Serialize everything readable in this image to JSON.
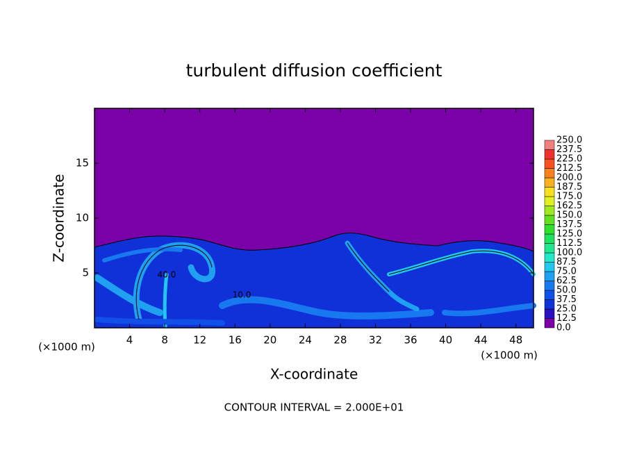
{
  "chart_data": {
    "type": "contour",
    "title": "turbulent diffusion coefficient",
    "x_label": "X-coordinate",
    "y_label": "Z-coordinate",
    "x_unit": "(×1000 m)",
    "y_unit": "(×1000 m)",
    "footer": "CONTOUR INTERVAL = 2.000E+01",
    "contour_labels": [
      "40.0",
      "10.0"
    ],
    "xlim": [
      0,
      50
    ],
    "xticks": [
      4,
      8,
      12,
      16,
      20,
      24,
      28,
      32,
      36,
      40,
      44,
      48
    ],
    "ylim": [
      0,
      20
    ],
    "yticks": [
      5,
      10,
      15
    ],
    "colorbar": {
      "levels": [
        {
          "value": 0,
          "label": "0.0"
        },
        12.5,
        {
          "value": 25,
          "label": "25.0"
        },
        37.5,
        {
          "value": 50,
          "label": "50.0"
        },
        62.5,
        {
          "value": 75,
          "label": "75.0"
        },
        87.5,
        {
          "value": 100,
          "label": "100.0"
        },
        112.5,
        {
          "value": 125,
          "label": "125.0"
        },
        137.5,
        {
          "value": 150,
          "label": "150.0"
        },
        162.5,
        {
          "value": 175,
          "label": "175.0"
        },
        187.5,
        {
          "value": 200,
          "label": "200.0"
        },
        212.5,
        {
          "value": 225,
          "label": "225.0"
        },
        237.5,
        {
          "value": 250,
          "label": "250.0"
        }
      ],
      "colors": [
        "#7a00a8",
        "#2a10c0",
        "#1030d8",
        "#1050e8",
        "#1878f0",
        "#20a0f0",
        "#20c8f0",
        "#20e8c8",
        "#20e890",
        "#20e060",
        "#30e030",
        "#60e020",
        "#a0e820",
        "#e0f020",
        "#f8e020",
        "#f8b020",
        "#f88020",
        "#f85020",
        "#f03030",
        "#f08080"
      ]
    }
  }
}
